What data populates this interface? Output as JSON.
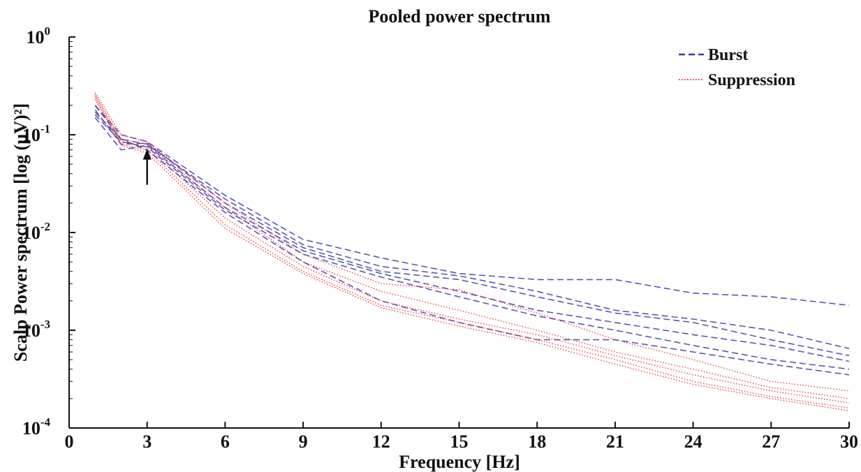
{
  "chart_data": {
    "type": "line",
    "title": "Pooled power spectrum",
    "xlabel": "Frequency [Hz]",
    "ylabel": "Scalp Power spectrum [log (µV)²]",
    "y_scale": "log",
    "xlim": [
      0,
      30
    ],
    "ylim": [
      0.0001,
      1
    ],
    "x_ticks": [
      0,
      3,
      6,
      9,
      12,
      15,
      18,
      21,
      24,
      27,
      30
    ],
    "y_ticks": [
      {
        "value": 1,
        "base": "10",
        "exp": "0"
      },
      {
        "value": 0.1,
        "base": "10",
        "exp": "-1"
      },
      {
        "value": 0.01,
        "base": "10",
        "exp": "-2"
      },
      {
        "value": 0.001,
        "base": "10",
        "exp": "-3"
      },
      {
        "value": 0.0001,
        "base": "10",
        "exp": "-4"
      }
    ],
    "grid": false,
    "legend_position": "top-right",
    "legend": [
      {
        "label": "Burst",
        "color": "#3a3aa8",
        "style": "dashed"
      },
      {
        "label": "Suppression",
        "color": "#e8202a",
        "style": "dotted"
      }
    ],
    "annotation": {
      "type": "arrow",
      "x": 3,
      "y": 0.07
    },
    "series": [
      {
        "group": "Burst",
        "color": "#3a3aa8",
        "style": "dashed",
        "x": [
          1,
          2,
          3,
          6,
          9,
          12,
          15,
          18,
          21,
          24,
          27,
          30
        ],
        "y": [
          0.2,
          0.1,
          0.085,
          0.024,
          0.0085,
          0.0055,
          0.0038,
          0.0033,
          0.0033,
          0.0024,
          0.0022,
          0.0018
        ]
      },
      {
        "group": "Burst",
        "color": "#3a3aa8",
        "style": "dashed",
        "x": [
          1,
          2,
          3,
          6,
          9,
          12,
          15,
          18,
          21,
          24,
          27,
          30
        ],
        "y": [
          0.17,
          0.09,
          0.08,
          0.022,
          0.0075,
          0.0045,
          0.0036,
          0.0025,
          0.0016,
          0.0013,
          0.001,
          0.00065
        ]
      },
      {
        "group": "Burst",
        "color": "#3a3aa8",
        "style": "dashed",
        "x": [
          1,
          2,
          3,
          6,
          9,
          12,
          15,
          18,
          21,
          24,
          27,
          30
        ],
        "y": [
          0.18,
          0.08,
          0.082,
          0.02,
          0.007,
          0.004,
          0.0033,
          0.0022,
          0.0015,
          0.0012,
          0.0008,
          0.00055
        ]
      },
      {
        "group": "Burst",
        "color": "#3a3aa8",
        "style": "dashed",
        "x": [
          1,
          2,
          3,
          6,
          9,
          12,
          15,
          18,
          21,
          24,
          27,
          30
        ],
        "y": [
          0.15,
          0.07,
          0.078,
          0.018,
          0.0065,
          0.0038,
          0.0025,
          0.0016,
          0.0012,
          0.0009,
          0.0007,
          0.00048
        ]
      },
      {
        "group": "Burst",
        "color": "#3a3aa8",
        "style": "dashed",
        "x": [
          1,
          2,
          3,
          6,
          9,
          12,
          15,
          18,
          21,
          24,
          27,
          30
        ],
        "y": [
          0.16,
          0.085,
          0.075,
          0.017,
          0.006,
          0.0035,
          0.0022,
          0.0014,
          0.001,
          0.0007,
          0.0005,
          0.0004
        ]
      },
      {
        "group": "Burst",
        "color": "#3a3aa8",
        "style": "dashed",
        "x": [
          1,
          2,
          3,
          6,
          9,
          12,
          15,
          18,
          21,
          24,
          27,
          30
        ],
        "y": [
          0.2,
          0.09,
          0.07,
          0.016,
          0.005,
          0.002,
          0.0012,
          0.0008,
          0.0008,
          0.0006,
          0.00045,
          0.00035
        ]
      },
      {
        "group": "Suppression",
        "color": "#e8202a",
        "style": "dotted",
        "x": [
          1,
          2,
          3,
          6,
          9,
          12,
          15,
          18,
          21,
          24,
          27,
          30
        ],
        "y": [
          0.27,
          0.1,
          0.085,
          0.02,
          0.006,
          0.003,
          0.0026,
          0.0015,
          0.0008,
          0.0005,
          0.0003,
          0.00024
        ]
      },
      {
        "group": "Suppression",
        "color": "#e8202a",
        "style": "dotted",
        "x": [
          1,
          2,
          3,
          6,
          9,
          12,
          15,
          18,
          21,
          24,
          27,
          30
        ],
        "y": [
          0.26,
          0.09,
          0.08,
          0.018,
          0.005,
          0.0025,
          0.0016,
          0.001,
          0.0006,
          0.0004,
          0.00026,
          0.0002
        ]
      },
      {
        "group": "Suppression",
        "color": "#e8202a",
        "style": "dotted",
        "x": [
          1,
          2,
          3,
          6,
          9,
          12,
          15,
          18,
          21,
          24,
          27,
          30
        ],
        "y": [
          0.25,
          0.085,
          0.075,
          0.014,
          0.0045,
          0.002,
          0.0013,
          0.0009,
          0.00055,
          0.00035,
          0.00024,
          0.00018
        ]
      },
      {
        "group": "Suppression",
        "color": "#e8202a",
        "style": "dotted",
        "x": [
          1,
          2,
          3,
          6,
          9,
          12,
          15,
          18,
          21,
          24,
          27,
          30
        ],
        "y": [
          0.24,
          0.08,
          0.07,
          0.012,
          0.004,
          0.0018,
          0.0012,
          0.0008,
          0.0005,
          0.0003,
          0.00021,
          0.00016
        ]
      },
      {
        "group": "Suppression",
        "color": "#e8202a",
        "style": "dotted",
        "x": [
          1,
          2,
          3,
          6,
          9,
          12,
          15,
          18,
          21,
          24,
          27,
          30
        ],
        "y": [
          0.23,
          0.078,
          0.065,
          0.011,
          0.0038,
          0.0017,
          0.0011,
          0.00075,
          0.00045,
          0.00028,
          0.0002,
          0.00015
        ]
      }
    ]
  }
}
